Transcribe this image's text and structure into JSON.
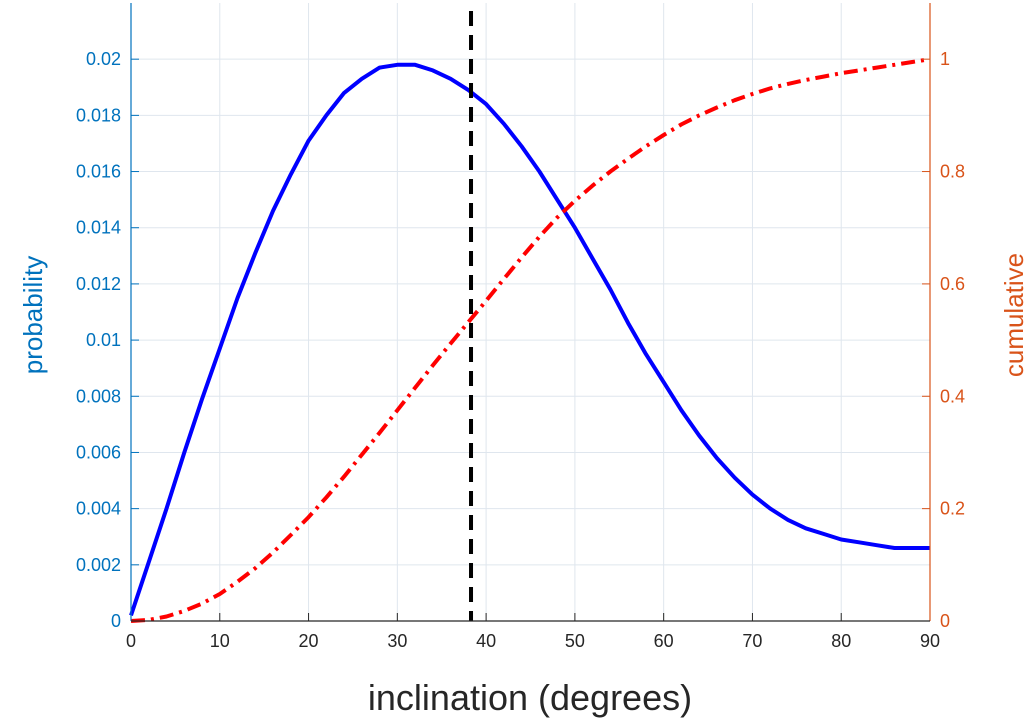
{
  "chart_data": {
    "type": "line",
    "xlabel": "inclination (degrees)",
    "ylabel_left": "probability",
    "ylabel_right": "cumulative",
    "xlim": [
      0,
      90
    ],
    "ylim_left": [
      0,
      0.022
    ],
    "ylim_right": [
      0,
      1.1
    ],
    "x_ticks": [
      "0",
      "10",
      "20",
      "30",
      "40",
      "50",
      "60",
      "70",
      "80",
      "90"
    ],
    "y_left_ticks": [
      "0",
      "0.002",
      "0.004",
      "0.006",
      "0.008",
      "0.01",
      "0.012",
      "0.014",
      "0.016",
      "0.018",
      "0.02"
    ],
    "y_right_ticks": [
      "0",
      "0.2",
      "0.4",
      "0.6",
      "0.8",
      "1"
    ],
    "grid": true,
    "colors": {
      "left_axis": "#0072BD",
      "right_axis": "#D95319",
      "probability_line": "#0000FF",
      "cumulative_line": "#FF0000",
      "marker_line": "#000000",
      "grid": "#DFE6EE",
      "x_axis": "#262626"
    },
    "series": [
      {
        "axis": "left",
        "style": "solid",
        "x": [
          0,
          2,
          4,
          6,
          8,
          10,
          12,
          14,
          16,
          18,
          20,
          22,
          24,
          26,
          28,
          30,
          32,
          34,
          36,
          38,
          40,
          42,
          44,
          46,
          48,
          50,
          52,
          54,
          56,
          58,
          60,
          62,
          64,
          66,
          68,
          70,
          72,
          74,
          76,
          78,
          80,
          82,
          84,
          86,
          88,
          90
        ],
        "values": [
          0.0002,
          0.0021,
          0.004,
          0.006,
          0.0079,
          0.0097,
          0.0115,
          0.0131,
          0.0146,
          0.0159,
          0.0171,
          0.018,
          0.0188,
          0.0193,
          0.0197,
          0.0198,
          0.0198,
          0.0196,
          0.0193,
          0.0189,
          0.0184,
          0.0177,
          0.0169,
          0.016,
          0.015,
          0.014,
          0.0129,
          0.0118,
          0.0106,
          0.0095,
          0.0085,
          0.0075,
          0.0066,
          0.0058,
          0.0051,
          0.0045,
          0.004,
          0.0036,
          0.0033,
          0.0031,
          0.0029,
          0.0028,
          0.0027,
          0.0026,
          0.0026,
          0.0026
        ]
      },
      {
        "axis": "right",
        "style": "dash-dot",
        "x": [
          0,
          2,
          4,
          6,
          8,
          10,
          12,
          14,
          16,
          18,
          20,
          22,
          24,
          26,
          28,
          30,
          32,
          34,
          36,
          38,
          40,
          42,
          44,
          46,
          48,
          50,
          52,
          54,
          56,
          58,
          60,
          62,
          64,
          66,
          68,
          70,
          72,
          74,
          76,
          78,
          80,
          82,
          84,
          86,
          88,
          90
        ],
        "values": [
          0.0,
          0.002,
          0.008,
          0.018,
          0.031,
          0.048,
          0.07,
          0.094,
          0.122,
          0.153,
          0.185,
          0.22,
          0.257,
          0.296,
          0.335,
          0.375,
          0.415,
          0.455,
          0.494,
          0.532,
          0.57,
          0.609,
          0.647,
          0.684,
          0.718,
          0.748,
          0.775,
          0.8,
          0.823,
          0.845,
          0.865,
          0.884,
          0.9,
          0.914,
          0.927,
          0.938,
          0.948,
          0.956,
          0.963,
          0.969,
          0.975,
          0.98,
          0.985,
          0.99,
          0.995,
          1.0
        ]
      }
    ],
    "vertical_line": {
      "x": 38.3,
      "style": "dashed"
    }
  }
}
